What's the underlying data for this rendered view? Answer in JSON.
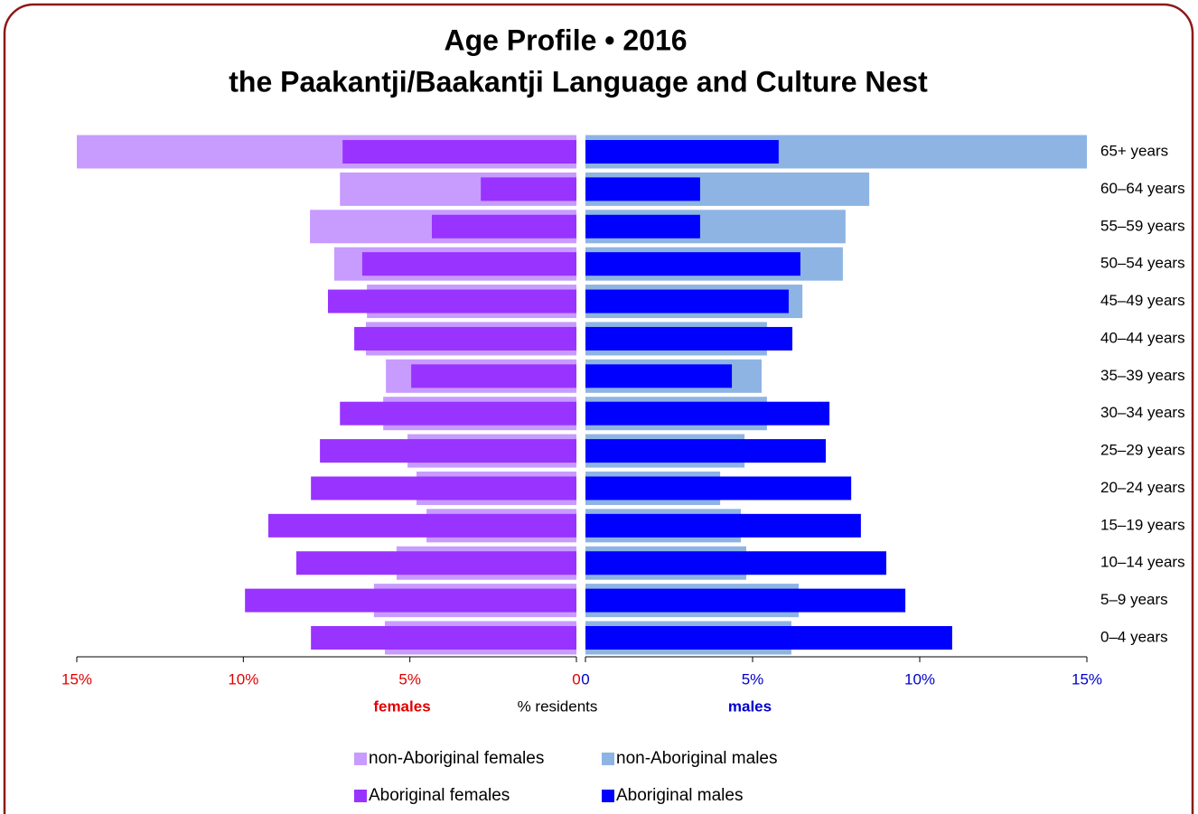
{
  "chart_data": {
    "type": "pyramid",
    "title": [
      "Age Profile  •  2016",
      "the Paakantji/Baakantji Language and Culture Nest"
    ],
    "categories": [
      "65+ years",
      "60–64 years",
      "55–59 years",
      "50–54 years",
      "45–49 years",
      "40–44 years",
      "35–39 years",
      "30–34 years",
      "25–29 years",
      "20–24 years",
      "15–19 years",
      "10–14 years",
      "5–9 years",
      "0–4 years"
    ],
    "series": [
      {
        "name": "non-Aboriginal females",
        "color": "#c89bff",
        "side": "left",
        "width": "wide",
        "values": [
          15.0,
          7.1,
          8.0,
          7.27,
          6.29,
          6.32,
          5.72,
          5.8,
          5.07,
          4.8,
          4.5,
          5.4,
          6.08,
          5.75
        ]
      },
      {
        "name": "non-Aboriginal males",
        "color": "#8eb4e3",
        "side": "right",
        "width": "wide",
        "values": [
          15.0,
          8.49,
          7.78,
          7.7,
          6.49,
          5.43,
          5.27,
          5.43,
          4.76,
          4.03,
          4.65,
          4.81,
          6.38,
          6.16
        ]
      },
      {
        "name": "Aboriginal females",
        "color": "#9933ff",
        "side": "left",
        "width": "narrow",
        "values": [
          7.02,
          2.87,
          4.34,
          6.43,
          7.46,
          6.67,
          4.96,
          7.1,
          7.7,
          7.97,
          9.25,
          8.41,
          9.95,
          7.97
        ]
      },
      {
        "name": "Aboriginal males",
        "color": "#0000ff",
        "side": "right",
        "width": "narrow",
        "values": [
          5.78,
          3.43,
          3.43,
          6.43,
          6.08,
          6.19,
          4.38,
          7.3,
          7.19,
          7.95,
          8.24,
          9.0,
          9.57,
          10.97
        ]
      }
    ],
    "xlim_left": [
      15,
      0
    ],
    "xticks_left": [
      {
        "value": 15,
        "label": "15%"
      },
      {
        "value": 10,
        "label": "10%"
      },
      {
        "value": 5,
        "label": "5%"
      },
      0
    ],
    "xlim_right": [
      0,
      15
    ],
    "xticks_right": [
      0,
      {
        "value": 5,
        "label": "5%"
      },
      {
        "value": 10,
        "label": "10%"
      },
      {
        "value": 15,
        "label": "15%"
      }
    ],
    "left_label": "females",
    "axis_label": "% residents",
    "right_label": "males"
  }
}
